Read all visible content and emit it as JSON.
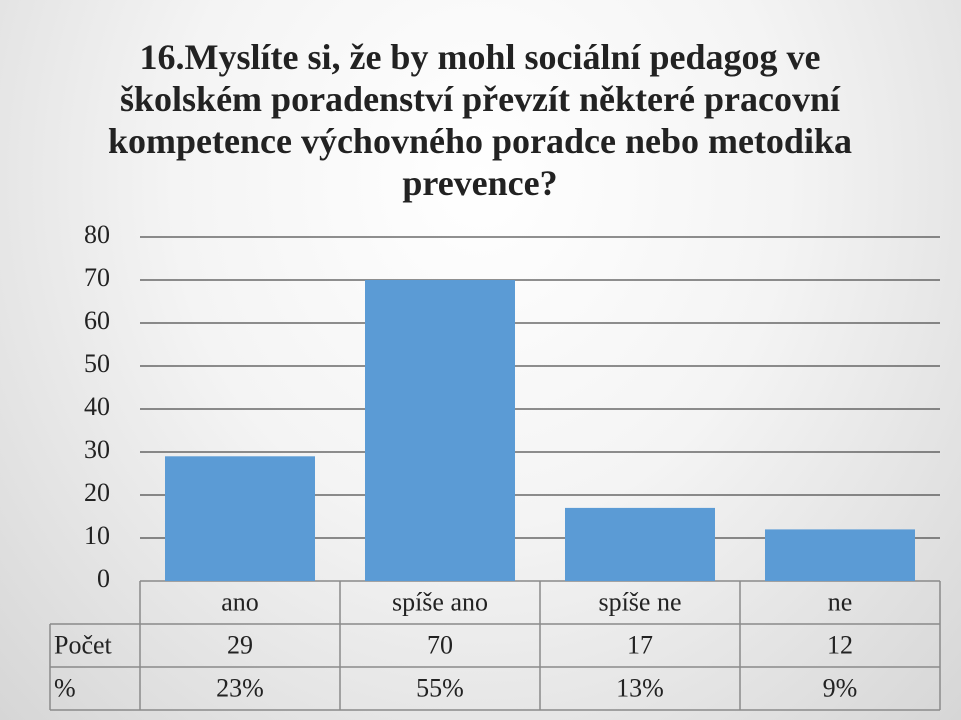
{
  "chart_data": {
    "type": "bar",
    "title": "16.Myslíte si, že by mohl sociální pedagog ve školském poradenství převzít některé pracovní kompetence výchovného poradce nebo metodika prevence?",
    "categories": [
      "ano",
      "spíše ano",
      "spíše ne",
      "ne"
    ],
    "series": [
      {
        "name": "Počet",
        "color": "#5b9bd5",
        "values": [
          29,
          70,
          17,
          12
        ]
      }
    ],
    "data_table": {
      "rows": [
        {
          "label": "%",
          "values": [
            23,
            55,
            13,
            9
          ],
          "value_labels": [
            "23%",
            "55%",
            "13%",
            "9%"
          ]
        }
      ]
    },
    "ylim": [
      0,
      80
    ],
    "yticks": [
      0,
      10,
      20,
      30,
      40,
      50,
      60,
      70,
      80
    ],
    "grid": true
  }
}
